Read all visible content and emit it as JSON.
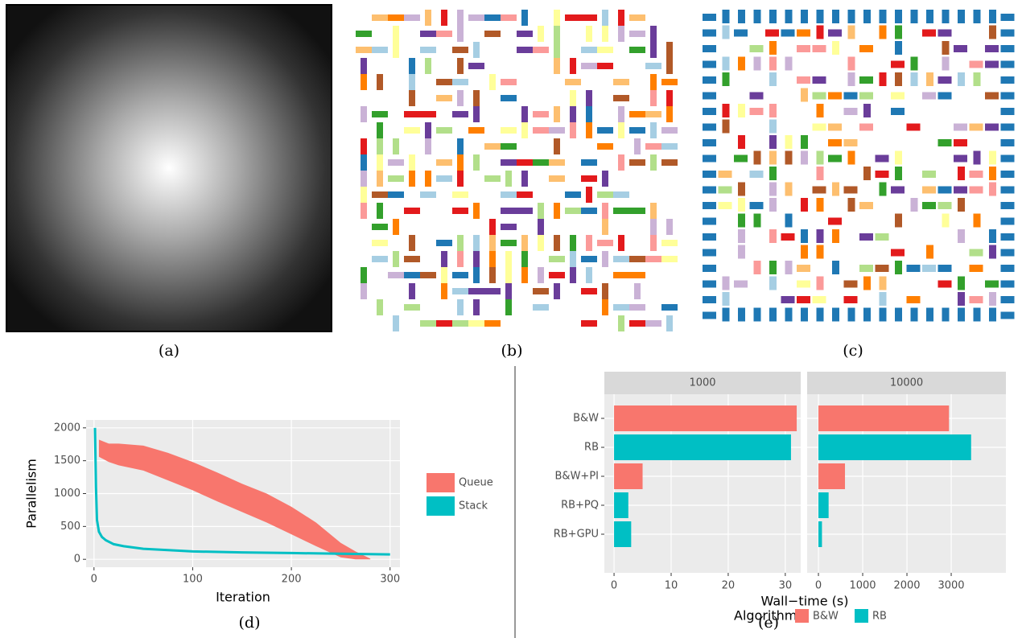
{
  "captions": [
    "(a)",
    "(b)",
    "(c)",
    "(d)",
    "(e)"
  ],
  "chart_data": [
    {
      "type": "line",
      "x_label": "Iteration",
      "y_label": "Parallelism",
      "xlim": [
        -8,
        310
      ],
      "xticks": [
        0,
        100,
        200,
        300
      ],
      "ylim": [
        -120,
        2120
      ],
      "yticks": [
        0,
        500,
        1000,
        1500,
        2000
      ],
      "grid": true,
      "series": [
        {
          "name": "Queue",
          "color": "#f8766d",
          "x": [
            5,
            15,
            25,
            50,
            75,
            100,
            125,
            150,
            175,
            200,
            225,
            250,
            265,
            280
          ],
          "values": [
            1820,
            1760,
            1760,
            1730,
            1620,
            1480,
            1320,
            1150,
            1000,
            800,
            560,
            250,
            120,
            10
          ],
          "lower": [
            1560,
            1480,
            1430,
            1350,
            1200,
            1050,
            880,
            720,
            560,
            380,
            200,
            30,
            0,
            0
          ]
        },
        {
          "name": "Stack",
          "color": "#00bfc4",
          "x": [
            1,
            2,
            3,
            5,
            8,
            12,
            20,
            30,
            50,
            75,
            100,
            150,
            200,
            250,
            300
          ],
          "values": [
            2000,
            1100,
            600,
            420,
            340,
            290,
            230,
            200,
            160,
            140,
            120,
            105,
            95,
            85,
            75
          ]
        }
      ]
    },
    {
      "type": "bar",
      "orientation": "horizontal",
      "x_label": "Wall−time (s)",
      "categories": [
        "B&W",
        "RB",
        "B&W+PI",
        "RB+PQ",
        "RB+GPU"
      ],
      "bar_group": [
        0,
        1,
        0,
        1,
        1
      ],
      "legend": {
        "title": "Algorithm",
        "items": [
          {
            "name": "B&W",
            "color": "#f8766d"
          },
          {
            "name": "RB",
            "color": "#00bfc4"
          }
        ]
      },
      "facets": [
        {
          "title": "1000",
          "values": [
            32,
            31,
            5,
            2.5,
            3
          ],
          "xlim": [
            -1.7,
            32.7
          ],
          "xticks": [
            0,
            10,
            20,
            30
          ]
        },
        {
          "title": "10000",
          "values": [
            2950,
            3450,
            600,
            230,
            80
          ],
          "xlim": [
            -255,
            4236
          ],
          "xticks": [
            0,
            1000,
            2000,
            3000
          ]
        }
      ]
    }
  ]
}
